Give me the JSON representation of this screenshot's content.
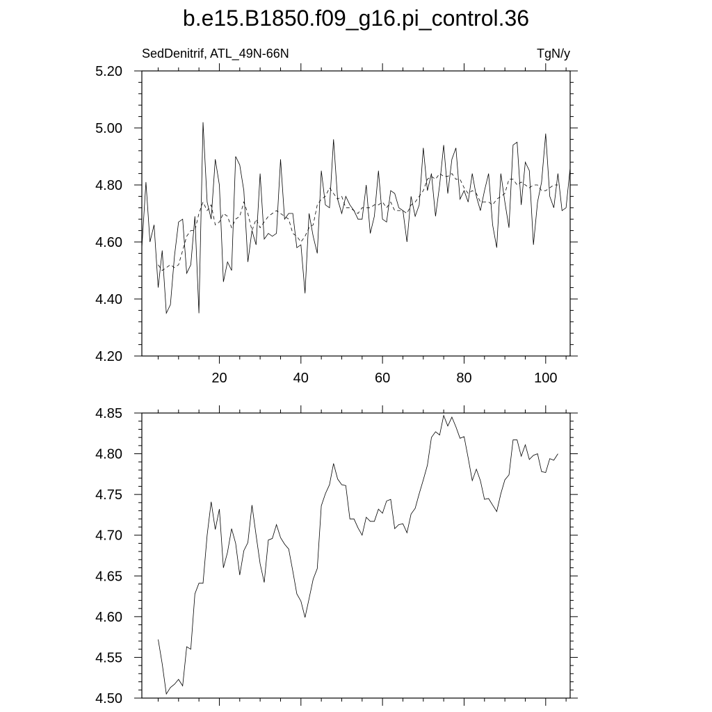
{
  "title": "b.e15.B1850.f09_g16.pi_control.36",
  "chart_data": [
    {
      "type": "line",
      "left_label": "SedDenitrif, ATL_49N-66N",
      "right_label": "TgN/y",
      "xlim": [
        1,
        106
      ],
      "ylim": [
        4.2,
        5.2
      ],
      "x_ticks": [
        20,
        40,
        60,
        80,
        100
      ],
      "x_tick_labels": [
        "20",
        "40",
        "60",
        "80",
        "100"
      ],
      "y_ticks": [
        4.2,
        4.4,
        4.6,
        4.8,
        5.0,
        5.2
      ],
      "y_tick_labels": [
        "4.20",
        "4.40",
        "4.60",
        "4.80",
        "5.00",
        "5.20"
      ],
      "x_start": 1,
      "series": [
        {
          "style": "solid",
          "values": [
            4.58,
            4.81,
            4.6,
            4.66,
            4.44,
            4.57,
            4.35,
            4.38,
            4.55,
            4.67,
            4.68,
            4.49,
            4.52,
            4.69,
            4.35,
            5.02,
            4.74,
            4.68,
            4.89,
            4.8,
            4.46,
            4.53,
            4.5,
            4.9,
            4.87,
            4.78,
            4.53,
            4.64,
            4.59,
            4.84,
            4.61,
            4.63,
            4.62,
            4.63,
            4.89,
            4.68,
            4.7,
            4.7,
            4.58,
            4.59,
            4.42,
            4.7,
            4.62,
            4.56,
            4.85,
            4.73,
            4.72,
            4.96,
            4.75,
            4.7,
            4.76,
            4.73,
            4.71,
            4.68,
            4.68,
            4.8,
            4.63,
            4.69,
            4.85,
            4.68,
            4.67,
            4.78,
            4.77,
            4.72,
            4.71,
            4.6,
            4.76,
            4.69,
            4.73,
            4.93,
            4.78,
            4.84,
            4.69,
            4.8,
            4.94,
            4.77,
            4.89,
            4.93,
            4.75,
            4.78,
            4.74,
            4.84,
            4.76,
            4.71,
            4.78,
            4.84,
            4.66,
            4.58,
            4.84,
            4.74,
            4.65,
            4.94,
            4.95,
            4.73,
            4.88,
            4.85,
            4.59,
            4.74,
            4.81,
            4.98,
            4.76,
            4.72,
            4.84,
            4.71,
            4.72,
            4.86
          ]
        },
        {
          "style": "dashed",
          "values": [
            null,
            null,
            null,
            null,
            4.52,
            4.5,
            4.51,
            4.52,
            4.51,
            4.52,
            4.57,
            4.62,
            4.64,
            4.64,
            4.7,
            4.74,
            4.71,
            4.73,
            4.66,
            4.67,
            4.7,
            4.69,
            4.65,
            4.68,
            4.69,
            4.74,
            4.7,
            4.64,
            4.68,
            4.65,
            4.67,
            4.69,
            4.7,
            4.71,
            4.7,
            4.69,
            4.68,
            4.63,
            4.62,
            4.6,
            4.62,
            4.65,
            4.66,
            4.73,
            4.75,
            4.76,
            4.79,
            4.77,
            4.75,
            4.76,
            4.72,
            4.72,
            4.71,
            4.7,
            4.72,
            4.72,
            4.72,
            4.73,
            4.73,
            4.74,
            4.72,
            4.74,
            4.71,
            4.71,
            4.71,
            4.7,
            4.73,
            4.74,
            4.76,
            4.78,
            4.82,
            4.83,
            4.82,
            4.84,
            4.83,
            4.83,
            4.84,
            4.82,
            4.82,
            4.79,
            4.77,
            4.78,
            4.77,
            4.74,
            4.74,
            4.74,
            4.73,
            4.75,
            4.76,
            4.77,
            4.82,
            4.82,
            4.8,
            4.81,
            4.8,
            4.79,
            4.8,
            4.8,
            4.78,
            4.78,
            4.79,
            4.8,
            4.8,
            null,
            null,
            null
          ]
        }
      ]
    },
    {
      "type": "line",
      "xlim": [
        1,
        106
      ],
      "ylim": [
        4.5,
        4.85
      ],
      "x_ticks": [
        20,
        40,
        60,
        80,
        100
      ],
      "y_ticks": [
        4.5,
        4.55,
        4.6,
        4.65,
        4.7,
        4.75,
        4.8,
        4.85
      ],
      "y_tick_labels": [
        "4.50",
        "4.55",
        "4.60",
        "4.65",
        "4.70",
        "4.75",
        "4.80",
        "4.85"
      ],
      "x_start": 5,
      "series": [
        {
          "style": "solid",
          "values": [
            4.572,
            4.542,
            4.505,
            4.513,
            4.517,
            4.523,
            4.515,
            4.563,
            4.56,
            4.628,
            4.641,
            4.641,
            4.7,
            4.741,
            4.707,
            4.732,
            4.66,
            4.679,
            4.708,
            4.69,
            4.651,
            4.681,
            4.691,
            4.737,
            4.7,
            4.665,
            4.642,
            4.694,
            4.696,
            4.713,
            4.697,
            4.689,
            4.683,
            4.656,
            4.628,
            4.619,
            4.599,
            4.622,
            4.646,
            4.659,
            4.736,
            4.751,
            4.762,
            4.788,
            4.769,
            4.762,
            4.761,
            4.72,
            4.72,
            4.709,
            4.7,
            4.722,
            4.717,
            4.717,
            4.732,
            4.727,
            4.742,
            4.744,
            4.708,
            4.713,
            4.714,
            4.703,
            4.726,
            4.733,
            4.751,
            4.768,
            4.786,
            4.82,
            4.827,
            4.823,
            4.847,
            4.834,
            4.845,
            4.833,
            4.819,
            4.821,
            4.795,
            4.767,
            4.781,
            4.767,
            4.744,
            4.745,
            4.737,
            4.729,
            4.751,
            4.768,
            4.774,
            4.817,
            4.817,
            4.797,
            4.811,
            4.793,
            4.798,
            4.8,
            4.778,
            4.777,
            4.794,
            4.792,
            4.8
          ]
        }
      ]
    }
  ]
}
